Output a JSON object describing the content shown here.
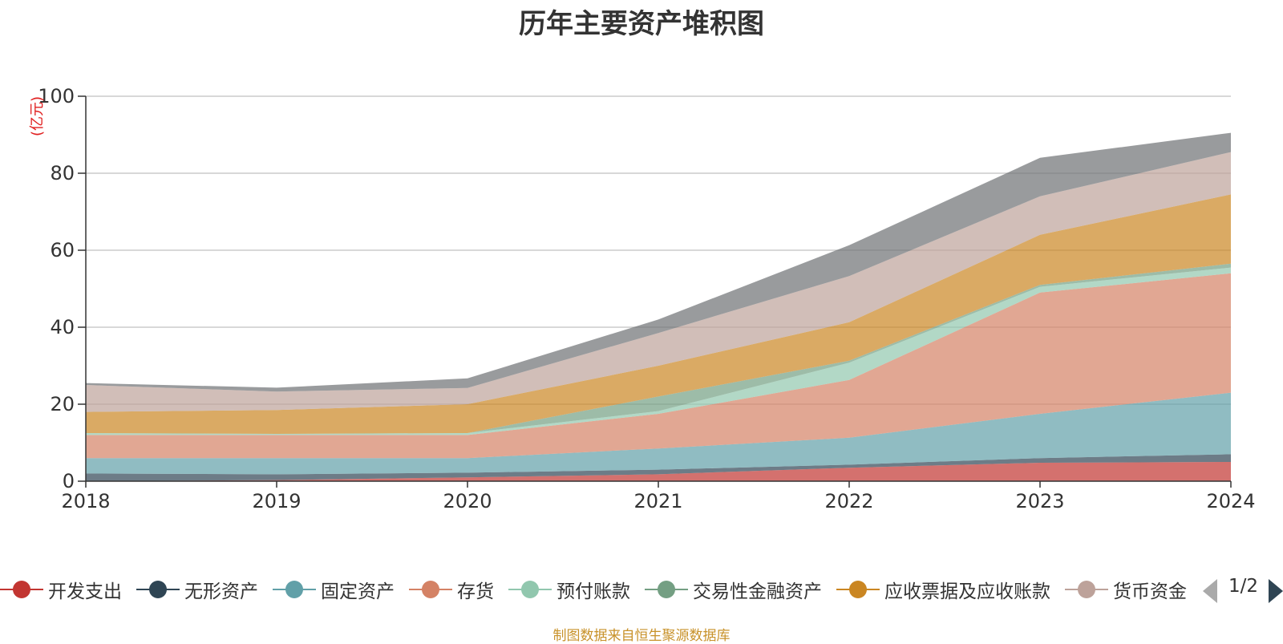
{
  "chart_data": {
    "type": "area",
    "stacked": true,
    "title": "历年主要资产堆积图",
    "unit_label": "(亿元)",
    "x": [
      "2018",
      "2019",
      "2020",
      "2021",
      "2022",
      "2023",
      "2024"
    ],
    "ylim": [
      0,
      100
    ],
    "yticks": [
      0,
      20,
      40,
      60,
      80,
      100
    ],
    "grid": true,
    "series": [
      {
        "name": "开发支出",
        "color": "#c23531",
        "values": [
          0.0,
          0.3,
          1.0,
          1.8,
          3.5,
          4.8,
          5.0
        ]
      },
      {
        "name": "无形资产",
        "color": "#2f4554",
        "values": [
          2.0,
          1.5,
          1.2,
          1.2,
          0.8,
          1.2,
          2.0
        ]
      },
      {
        "name": "固定资产",
        "color": "#61a0a8",
        "values": [
          4.0,
          4.2,
          3.8,
          5.5,
          7.0,
          11.5,
          16.0
        ]
      },
      {
        "name": "存货",
        "color": "#d48265",
        "values": [
          6.0,
          6.0,
          6.0,
          9.0,
          15.0,
          31.5,
          31.0
        ]
      },
      {
        "name": "预付账款",
        "color": "#91c7ae",
        "values": [
          0.5,
          0.3,
          0.5,
          0.7,
          4.5,
          1.5,
          1.5
        ]
      },
      {
        "name": "交易性金融资产",
        "color": "#749f83",
        "values": [
          0.0,
          0.0,
          0.0,
          3.8,
          0.5,
          0.5,
          1.0
        ]
      },
      {
        "name": "应收票据及应收账款",
        "color": "#ca8622",
        "values": [
          5.5,
          6.2,
          7.5,
          8.0,
          10.0,
          13.0,
          18.0
        ]
      },
      {
        "name": "货币资金",
        "color": "#bda29a",
        "values": [
          7.0,
          4.8,
          4.2,
          8.5,
          12.0,
          10.0,
          11.0
        ]
      },
      {
        "name": "",
        "color": "#6e7074",
        "values": [
          0.5,
          1.0,
          2.5,
          3.5,
          8.0,
          10.0,
          5.0
        ]
      }
    ]
  },
  "legend": {
    "items": [
      {
        "label": "开发支出",
        "color": "#c23531"
      },
      {
        "label": "无形资产",
        "color": "#2f4554"
      },
      {
        "label": "固定资产",
        "color": "#61a0a8"
      },
      {
        "label": "存货",
        "color": "#d48265"
      },
      {
        "label": "预付账款",
        "color": "#91c7ae"
      },
      {
        "label": "交易性金融资产",
        "color": "#749f83"
      },
      {
        "label": "应收票据及应收账款",
        "color": "#ca8622"
      },
      {
        "label": "货币资金",
        "color": "#bda29a"
      }
    ],
    "page_indicator": "1/2"
  },
  "source": "制图数据来自恒生聚源数据库"
}
